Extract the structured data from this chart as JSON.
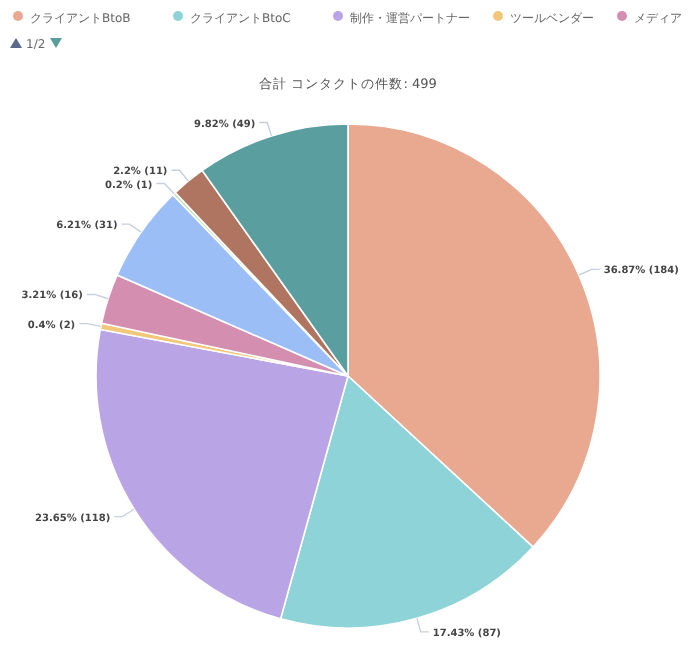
{
  "chart_data": {
    "type": "pie",
    "title": "合計 コンタクトの件数: 499",
    "categories": [
      "クライアントBtoB",
      "クライアントBtoC",
      "制作・運営パートナー",
      "ツールベンダー",
      "メディア",
      null,
      null,
      null,
      null
    ],
    "values": [
      184,
      87,
      118,
      2,
      16,
      31,
      1,
      11,
      49
    ],
    "colors": [
      "#e8a990",
      "#8dd3d8",
      "#b9a4e6",
      "#f2c77b",
      "#d48fb0",
      "#9bbef7",
      "#c5e0b0",
      "#b07560",
      "#5b9ea0"
    ],
    "value_labels": [
      "36.87% (184)",
      "17.43% (87)",
      "23.65% (118)",
      "0.4% (2)",
      "3.21% (16)",
      "6.21% (31)",
      "0.2% (1)",
      "2.2% (11)",
      "9.82% (49)"
    ],
    "legend": "top left",
    "annotations": [
      "1/2"
    ]
  }
}
